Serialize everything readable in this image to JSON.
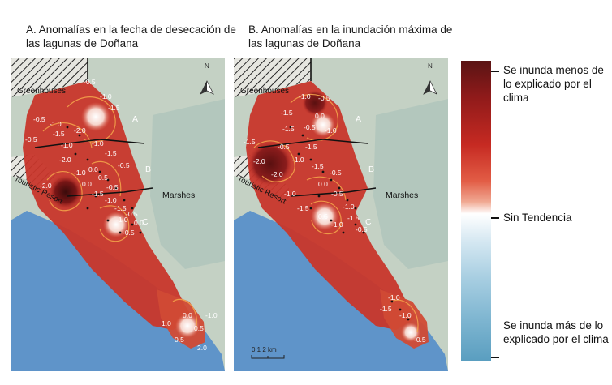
{
  "panels": [
    {
      "title": "A. Anomalías en la fecha de desecación de las lagunas de Doñana",
      "labels": {
        "greenhouses": "Greenhouses",
        "resort": "Touristic Resort",
        "marshes": "Marshes",
        "zone_a": "A",
        "zone_b": "B",
        "zone_c": "C",
        "north": "N"
      },
      "contour_values": [
        "-0.5",
        "-1.0",
        "-1.5",
        "-0.5",
        "-1.0",
        "-1.5",
        "-2.0",
        "-1.0",
        "-0.5",
        "-1.0",
        "-1.5",
        "-2.0",
        "0.0",
        "-1.0",
        "0.5",
        "-0.5",
        "-2.0",
        "0.0",
        "-1.5",
        "-0.5",
        "-1.0",
        "-1.5",
        "-0.5",
        "-1.0",
        "0.0",
        "-0.5",
        "1.0",
        "0.5",
        "2.0",
        "0.5",
        "0.0",
        "-1.0"
      ]
    },
    {
      "title": "B. Anomalías en la inundación máxima de las lagunas de Doñana",
      "labels": {
        "greenhouses": "Greenhouses",
        "resort": "Touristic Resort",
        "marshes": "Marshes",
        "zone_a": "A",
        "zone_b": "B",
        "zone_c": "C",
        "north": "N",
        "scale": "0  1  2 km"
      },
      "contour_values": [
        "-1.0",
        "-0.5",
        "-1.5",
        "0.0",
        "-1.5",
        "-0.5",
        "-1.0",
        "-2.0",
        "-1.5",
        "-0.5",
        "-1.5",
        "-1.0",
        "-2.0",
        "-1.5",
        "-0.5",
        "0.0",
        "-1.0",
        "-0.5",
        "-1.0",
        "-1.5",
        "0.5",
        "-1.0",
        "-1.5",
        "-0.5",
        "-1.0",
        "-1.5",
        "-1.0",
        "-0.5"
      ]
    }
  ],
  "legend": {
    "top": "Se inunda menos de lo explicado por el clima",
    "middle": "Sin Tendencia",
    "bottom": "Se inunda más de lo explicado por el clima"
  },
  "colors": {
    "sea": "#5f94c9",
    "land": "#c4d1c4",
    "anomaly_red": "#c8362b",
    "dark_red": "#6e1515",
    "contour": "#f3a24a"
  }
}
